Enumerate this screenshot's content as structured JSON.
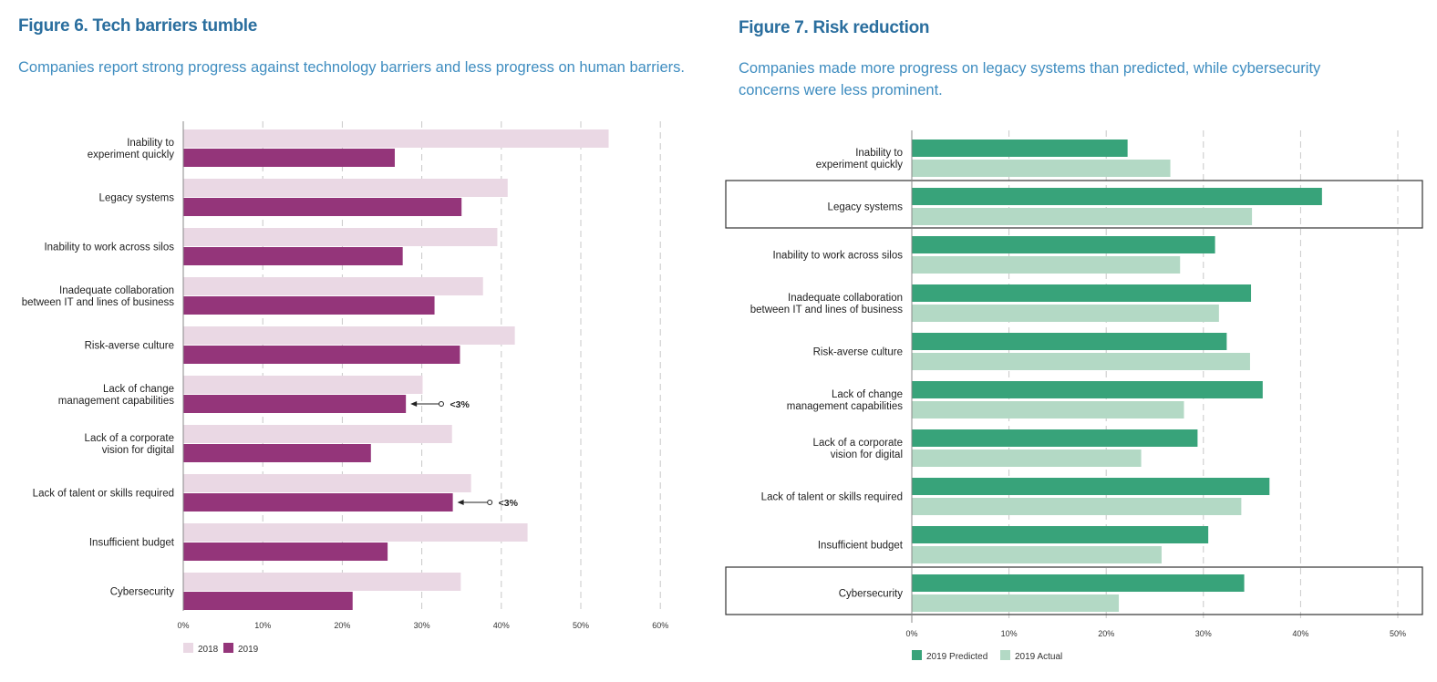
{
  "figure6": {
    "title": "Figure 6. Tech barriers tumble",
    "subtitle": "Companies report strong progress against technology barriers and less progress on human barriers."
  },
  "figure7": {
    "title": "Figure 7. Risk reduction",
    "subtitle": "Companies made more progress on legacy systems than predicted, while cybersecurity concerns were less prominent."
  },
  "colors": {
    "c2018": "#ead8e4",
    "c2019": "#94357a",
    "predicted": "#38a37a",
    "actual": "#b3d9c5",
    "title": "#2a6e9e",
    "subtitle": "#3f8dc0"
  },
  "chart_data": [
    {
      "type": "bar",
      "orientation": "horizontal",
      "categories": [
        [
          "Inability to",
          "experiment quickly"
        ],
        [
          "Legacy systems"
        ],
        [
          "Inability to work across silos"
        ],
        [
          "Inadequate collaboration",
          "between IT and lines of business"
        ],
        [
          "Risk-averse culture"
        ],
        [
          "Lack of change",
          "management capabilities"
        ],
        [
          "Lack of a corporate",
          "vision for digital"
        ],
        [
          "Lack of talent or skills required"
        ],
        [
          "Insufficient budget"
        ],
        [
          "Cybersecurity"
        ]
      ],
      "series": [
        {
          "name": "2018",
          "color": "#ead8e4",
          "values": [
            53.5,
            40.8,
            39.5,
            37.7,
            41.7,
            30.1,
            33.8,
            36.2,
            43.3,
            34.9
          ]
        },
        {
          "name": "2019",
          "color": "#94357a",
          "values": [
            26.6,
            35.0,
            27.6,
            31.6,
            34.8,
            28.0,
            23.6,
            33.9,
            25.7,
            21.3
          ]
        }
      ],
      "xticks": [
        "0%",
        "10%",
        "20%",
        "30%",
        "40%",
        "50%",
        "60%"
      ],
      "xlim": [
        0,
        60
      ],
      "grid": true,
      "legend": "bottom-left",
      "annotations": [
        {
          "category_index": 5,
          "text": "<3%"
        },
        {
          "category_index": 7,
          "text": "<3%"
        }
      ]
    },
    {
      "type": "bar",
      "orientation": "horizontal",
      "categories": [
        [
          "Inability to",
          "experiment quickly"
        ],
        [
          "Legacy systems"
        ],
        [
          "Inability to work across silos"
        ],
        [
          "Inadequate collaboration",
          "between IT and lines of business"
        ],
        [
          "Risk-averse culture"
        ],
        [
          "Lack of change",
          "management capabilities"
        ],
        [
          "Lack of a corporate",
          "vision for digital"
        ],
        [
          "Lack of talent or skills required"
        ],
        [
          "Insufficient budget"
        ],
        [
          "Cybersecurity"
        ]
      ],
      "series": [
        {
          "name": "2019 Predicted",
          "color": "#38a37a",
          "values": [
            22.2,
            42.2,
            31.2,
            34.9,
            32.4,
            36.1,
            29.4,
            36.8,
            30.5,
            34.2
          ]
        },
        {
          "name": "2019 Actual",
          "color": "#b3d9c5",
          "values": [
            26.6,
            35.0,
            27.6,
            31.6,
            34.8,
            28.0,
            23.6,
            33.9,
            25.7,
            21.3
          ]
        }
      ],
      "xticks": [
        "0%",
        "10%",
        "20%",
        "30%",
        "40%",
        "50%"
      ],
      "xlim": [
        0,
        50
      ],
      "grid": true,
      "legend": "bottom-left",
      "highlighted_categories": [
        1,
        9
      ]
    }
  ]
}
